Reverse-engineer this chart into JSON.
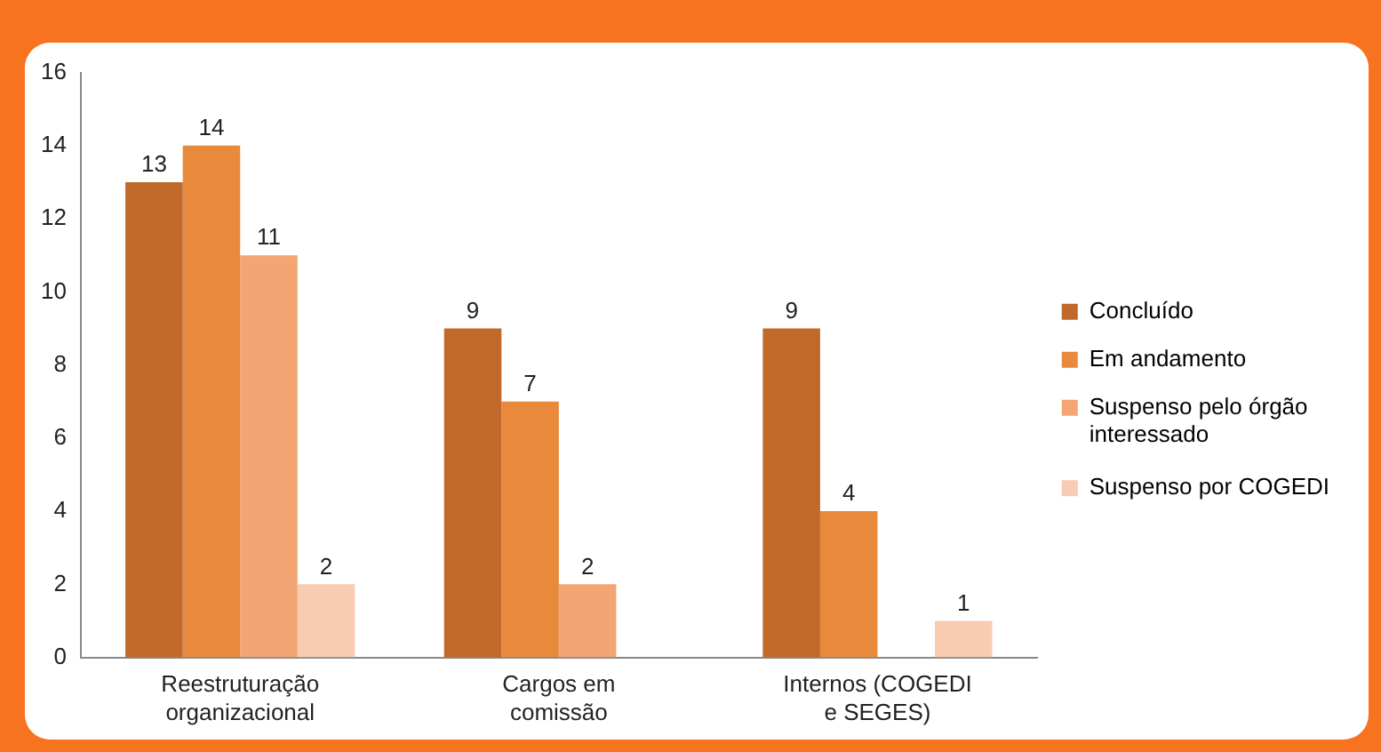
{
  "chart_data": {
    "type": "bar",
    "categories": [
      "Reestruturação organizacional",
      "Cargos em comissão",
      "Internos (COGEDI e SEGES)"
    ],
    "series": [
      {
        "name": "Concluído",
        "color": "#c0692b",
        "values": [
          13,
          9,
          9
        ]
      },
      {
        "name": "Em andamento",
        "color": "#e8893c",
        "values": [
          14,
          7,
          4
        ]
      },
      {
        "name": "Suspenso pelo órgão interessado",
        "color": "#f3a673",
        "values": [
          11,
          2,
          null
        ]
      },
      {
        "name": "Suspenso por COGEDI",
        "color": "#f8cbb3",
        "values": [
          2,
          null,
          1
        ]
      }
    ],
    "ylim": [
      0,
      16
    ],
    "yticks": [
      0,
      2,
      4,
      6,
      8,
      10,
      12,
      14,
      16
    ],
    "grid": false,
    "legend": "right",
    "data_labels": true
  }
}
